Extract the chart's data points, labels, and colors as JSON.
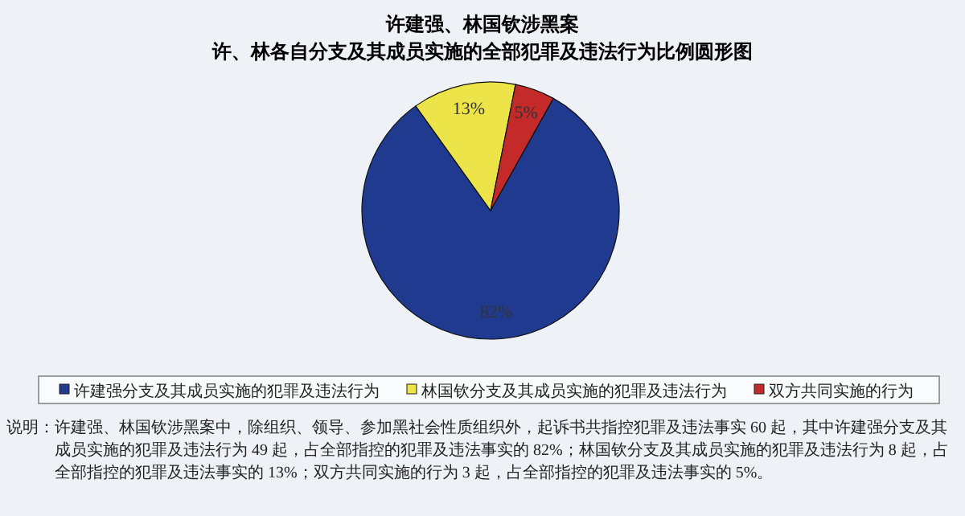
{
  "chart_data": {
    "type": "pie",
    "title": "许建强、林国钦涉黑案",
    "subtitle": "许、林各自分支及其成员实施的全部犯罪及违法行为比例圆形图",
    "categories": [
      "许建强分支及其成员实施的犯罪及违法行为",
      "林国钦分支及其成员实施的犯罪及违法行为",
      "双方共同实施的行为"
    ],
    "values": [
      82,
      13,
      5
    ],
    "colors": [
      "#1f3a8f",
      "#ede44a",
      "#c42a2a"
    ],
    "value_labels": [
      "82%",
      "13%",
      "5%"
    ],
    "legend": "bottom",
    "annotations": [
      "说明：许建强、林国钦涉黑案中，除组织、领导、参加黑社会性质组织外，起诉书共指控犯罪及违法事实 60 起，其中许建强分支及其成员实施的犯罪及违法行为 49 起，占全部指控的犯罪及违法事实的 82%；林国钦分支及其成员实施的犯罪及违法行为 8 起，占全部指控的犯罪及违法事实的 13%；双方共同实施的行为 3 起，占全部指控的犯罪及违法事实的 5%。"
    ]
  }
}
